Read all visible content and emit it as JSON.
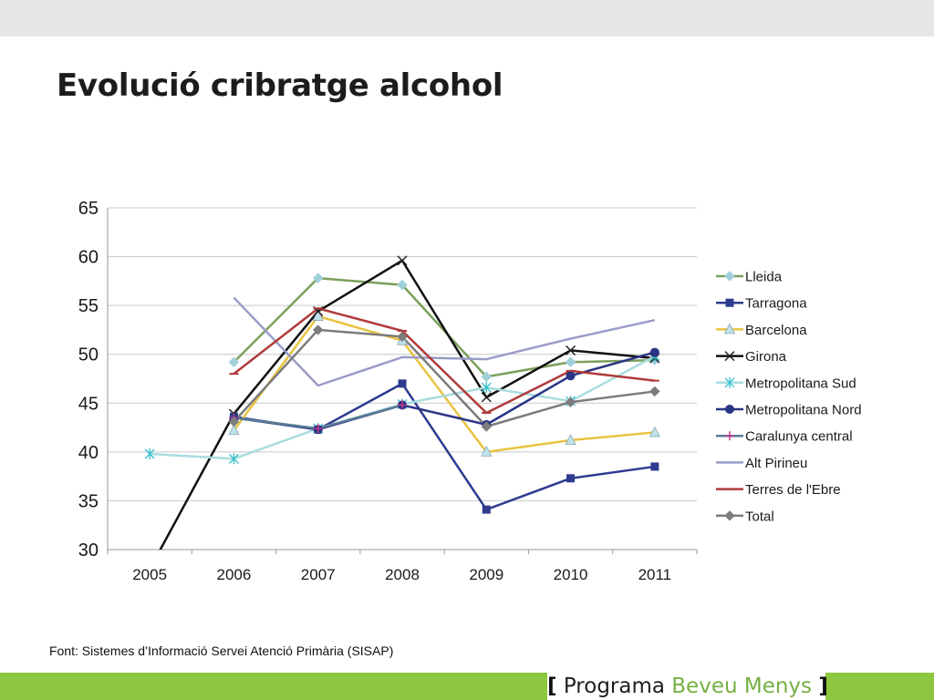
{
  "title": "Evolució cribratge alcohol",
  "source": "Font: Sistemes d’Informació Servei Atenció Primària (SISAP)",
  "brand": {
    "open": "[",
    "word1": "Programa",
    "word2": "Beveu Menys",
    "close": "]"
  },
  "colors": {
    "top_band": "#e6e6e6",
    "bottom_bar": "#8dc63f",
    "brand_green": "#76b043"
  },
  "chart_data": {
    "type": "line",
    "categories": [
      "2005",
      "2006",
      "2007",
      "2008",
      "2009",
      "2010",
      "2011"
    ],
    "ylim": [
      30,
      65
    ],
    "yticks": [
      30,
      35,
      40,
      45,
      50,
      55,
      60,
      65
    ],
    "grid": true,
    "legend_position": "right",
    "series": [
      {
        "name": "Lleida",
        "color": "#7ba05b",
        "marker": "diamond",
        "marker_color": "#9fd0da",
        "values": [
          null,
          49.2,
          57.8,
          57.1,
          47.7,
          49.2,
          49.4
        ]
      },
      {
        "name": "Tarragona",
        "color": "#2e3b8f",
        "marker": "square",
        "marker_color": "#2e3b8f",
        "values": [
          null,
          43.6,
          42.3,
          47.0,
          34.1,
          37.3,
          38.5
        ]
      },
      {
        "name": "Barcelona",
        "color": "#e8c340",
        "marker": "triangle",
        "marker_color": "#bfe2e9",
        "values": [
          null,
          42.2,
          53.9,
          51.4,
          40.0,
          41.2,
          42.0
        ]
      },
      {
        "name": "Girona",
        "color": "#111111",
        "marker": "x",
        "marker_color": "#222222",
        "values": [
          28.0,
          43.9,
          54.4,
          59.6,
          45.6,
          50.4,
          49.6
        ]
      },
      {
        "name": "Metropolitana Sud",
        "color": "#a9dcdf",
        "marker": "star",
        "marker_color": "#34c1cf",
        "values": [
          39.8,
          39.3,
          42.4,
          44.9,
          46.6,
          45.2,
          49.8
        ]
      },
      {
        "name": "Metropolitana Nord",
        "color": "#2a3585",
        "marker": "circle",
        "marker_color": "#2a3585",
        "values": [
          null,
          43.5,
          42.3,
          44.8,
          42.8,
          47.8,
          50.2
        ]
      },
      {
        "name": "Caralunya central",
        "color": "#5a7b95",
        "marker": "plus",
        "marker_color": "#c0388f",
        "values": [
          null,
          43.5,
          42.4,
          44.8,
          null,
          null,
          null
        ]
      },
      {
        "name": "Alt Pirineu",
        "color": "#9a9cc8",
        "marker": "none",
        "marker_color": "#9a9cc8",
        "values": [
          null,
          55.8,
          46.8,
          49.7,
          49.5,
          51.6,
          53.5
        ]
      },
      {
        "name": "Terres de l'Ebre",
        "color": "#b03a3a",
        "marker": "dash",
        "marker_color": "#b03a3a",
        "values": [
          null,
          48.0,
          54.7,
          52.4,
          44.0,
          48.3,
          47.3
        ]
      },
      {
        "name": "Total",
        "color": "#7c7c7c",
        "marker": "diamond",
        "marker_color": "#7c7c7c",
        "values": [
          null,
          43.1,
          52.5,
          51.8,
          42.6,
          45.1,
          46.2
        ]
      }
    ]
  }
}
